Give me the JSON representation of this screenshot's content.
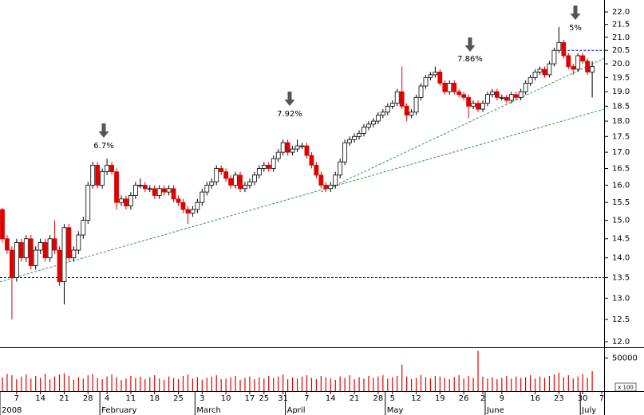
{
  "chart_data": {
    "type": "candlestick",
    "open": [
      15.3,
      14.5,
      14.2,
      13.5,
      14.4,
      14.0,
      14.5,
      13.8,
      14.2,
      14.4,
      14.0,
      14.5,
      14.2,
      13.4,
      14.8,
      14.0,
      14.2,
      14.6,
      15.0,
      16.0,
      16.6,
      16.0,
      16.4,
      16.6,
      16.4,
      15.5,
      15.6,
      15.4,
      15.7,
      16.0,
      16.0,
      15.9,
      15.9,
      15.7,
      15.9,
      15.8,
      15.9,
      15.6,
      15.5,
      15.3,
      15.2,
      15.3,
      15.5,
      15.8,
      16.0,
      16.1,
      16.5,
      16.4,
      16.2,
      16.0,
      16.3,
      15.9,
      16.0,
      16.1,
      16.3,
      16.5,
      16.6,
      16.5,
      16.8,
      17.0,
      17.3,
      17.0,
      17.1,
      17.2,
      17.2,
      16.9,
      16.6,
      16.3,
      16.0,
      15.9,
      16.0,
      16.3,
      16.7,
      17.3,
      17.4,
      17.5,
      17.6,
      17.8,
      17.9,
      18.0,
      18.2,
      18.3,
      18.5,
      18.6,
      19.0,
      18.5,
      18.2,
      18.3,
      18.8,
      19.2,
      19.5,
      19.6,
      19.7,
      19.3,
      19.0,
      19.3,
      19.0,
      18.9,
      18.8,
      18.5,
      18.6,
      18.4,
      18.6,
      18.9,
      19.0,
      18.8,
      18.8,
      18.7,
      18.9,
      18.8,
      19.0,
      19.3,
      19.5,
      19.7,
      19.8,
      19.6,
      20.0,
      20.5,
      20.8,
      20.3,
      19.9,
      19.8,
      20.3,
      20.1,
      19.7
    ],
    "high": [
      15.35,
      14.6,
      14.3,
      14.5,
      14.5,
      14.6,
      14.6,
      14.3,
      14.5,
      14.5,
      14.6,
      15.0,
      14.3,
      14.9,
      14.9,
      14.3,
      14.7,
      15.1,
      16.1,
      16.7,
      16.7,
      16.5,
      16.8,
      16.7,
      16.5,
      15.7,
      15.7,
      15.8,
      16.1,
      16.2,
      16.1,
      16.0,
      16.0,
      16.0,
      16.0,
      16.0,
      16.0,
      15.7,
      15.6,
      15.4,
      15.4,
      15.6,
      15.9,
      16.1,
      16.2,
      16.6,
      16.6,
      16.5,
      16.3,
      16.4,
      16.4,
      16.1,
      16.2,
      16.4,
      16.6,
      16.7,
      16.7,
      16.9,
      17.1,
      17.4,
      17.4,
      17.2,
      17.4,
      17.3,
      17.3,
      17.0,
      16.7,
      16.4,
      16.1,
      16.1,
      16.4,
      16.8,
      17.4,
      17.5,
      17.6,
      17.7,
      17.9,
      18.0,
      18.1,
      18.3,
      18.4,
      18.6,
      18.7,
      19.1,
      19.9,
      18.6,
      18.4,
      18.9,
      19.3,
      19.6,
      19.7,
      19.9,
      19.8,
      19.4,
      19.4,
      19.4,
      19.1,
      19.0,
      18.9,
      18.7,
      18.7,
      18.7,
      19.0,
      19.1,
      19.1,
      18.9,
      18.9,
      19.0,
      19.0,
      19.1,
      19.4,
      19.6,
      19.8,
      19.9,
      19.9,
      20.1,
      20.6,
      21.4,
      20.9,
      20.4,
      20.0,
      20.4,
      20.4,
      20.2,
      20.1
    ],
    "low": [
      14.4,
      14.1,
      12.5,
      13.4,
      13.9,
      13.9,
      13.7,
      13.7,
      14.1,
      13.9,
      13.9,
      14.1,
      13.3,
      12.85,
      13.9,
      13.9,
      14.1,
      14.5,
      14.9,
      15.9,
      15.9,
      15.9,
      16.3,
      16.3,
      15.3,
      15.4,
      15.3,
      15.3,
      15.6,
      15.9,
      15.8,
      15.8,
      15.6,
      15.6,
      15.7,
      15.7,
      15.5,
      15.4,
      15.2,
      14.9,
      15.1,
      15.2,
      15.4,
      15.7,
      15.9,
      16.0,
      16.3,
      16.1,
      15.9,
      15.9,
      15.8,
      15.8,
      15.9,
      16.0,
      16.2,
      16.4,
      16.4,
      16.4,
      16.7,
      16.9,
      16.9,
      16.9,
      17.0,
      17.1,
      16.8,
      16.5,
      16.2,
      15.9,
      15.8,
      15.8,
      15.9,
      16.2,
      16.6,
      17.2,
      17.3,
      17.4,
      17.5,
      17.7,
      17.8,
      17.9,
      18.1,
      18.2,
      18.4,
      18.5,
      18.4,
      18.0,
      18.1,
      18.2,
      18.7,
      19.1,
      19.4,
      19.5,
      19.2,
      18.9,
      18.9,
      18.9,
      18.8,
      18.7,
      18.1,
      18.4,
      18.3,
      18.3,
      18.5,
      18.8,
      18.7,
      18.7,
      18.6,
      18.6,
      18.7,
      18.7,
      18.9,
      19.2,
      19.4,
      19.6,
      19.5,
      19.5,
      19.9,
      20.4,
      20.2,
      19.8,
      19.6,
      19.7,
      20.0,
      19.6,
      18.8
    ],
    "close": [
      14.5,
      14.2,
      13.5,
      14.4,
      14.0,
      14.5,
      13.8,
      14.2,
      14.4,
      14.0,
      14.5,
      14.2,
      13.4,
      14.8,
      14.0,
      14.2,
      14.6,
      15.0,
      16.0,
      16.6,
      16.0,
      16.4,
      16.6,
      16.4,
      15.5,
      15.6,
      15.4,
      15.7,
      16.0,
      16.0,
      15.9,
      15.9,
      15.7,
      15.9,
      15.8,
      15.9,
      15.6,
      15.5,
      15.3,
      15.2,
      15.3,
      15.5,
      15.8,
      16.0,
      16.1,
      16.5,
      16.4,
      16.2,
      16.0,
      16.3,
      15.9,
      16.0,
      16.1,
      16.3,
      16.5,
      16.6,
      16.5,
      16.8,
      17.0,
      17.3,
      17.0,
      17.1,
      17.2,
      17.2,
      16.9,
      16.6,
      16.3,
      16.0,
      15.9,
      16.0,
      16.3,
      16.7,
      17.3,
      17.4,
      17.5,
      17.6,
      17.8,
      17.9,
      18.0,
      18.2,
      18.3,
      18.5,
      18.6,
      19.0,
      18.5,
      18.2,
      18.3,
      18.8,
      19.2,
      19.5,
      19.6,
      19.7,
      19.3,
      19.0,
      19.3,
      19.0,
      18.9,
      18.8,
      18.5,
      18.6,
      18.4,
      18.6,
      18.9,
      19.0,
      18.8,
      18.8,
      18.7,
      18.9,
      18.8,
      19.0,
      19.3,
      19.5,
      19.7,
      19.8,
      19.6,
      20.0,
      20.5,
      20.8,
      20.3,
      19.9,
      19.8,
      20.3,
      20.1,
      19.7,
      19.9
    ],
    "up_color": "#ffffff",
    "down_color": "#e00000",
    "log_scale": true,
    "ylim": [
      12,
      22
    ],
    "yticks": [
      {
        "value": 12,
        "label": "12.0"
      },
      {
        "value": 12.5,
        "label": "12.5"
      },
      {
        "value": 13,
        "label": "13.0"
      },
      {
        "value": 13.5,
        "label": "13.5"
      },
      {
        "value": 14,
        "label": "14.0"
      },
      {
        "value": 14.5,
        "label": "14.5"
      },
      {
        "value": 15,
        "label": "15.0"
      },
      {
        "value": 15.5,
        "label": "15.5"
      },
      {
        "value": 16,
        "label": "16.0"
      },
      {
        "value": 16.5,
        "label": "16.5"
      },
      {
        "value": 17,
        "label": "17.0"
      },
      {
        "value": 17.5,
        "label": "17.5"
      },
      {
        "value": 18,
        "label": "18.0"
      },
      {
        "value": 18.5,
        "label": "18.5"
      },
      {
        "value": 19,
        "label": "19.0"
      },
      {
        "value": 19.5,
        "label": "19.5"
      },
      {
        "value": 20,
        "label": "20.0"
      },
      {
        "value": 20.5,
        "label": "20.5"
      },
      {
        "value": 21,
        "label": "21.0"
      },
      {
        "value": 21.5,
        "label": "21.5"
      },
      {
        "value": 22,
        "label": "22.0"
      }
    ],
    "xlim": [
      -0.5,
      126.5
    ],
    "xticks": [
      {
        "value": 3,
        "label": "7"
      },
      {
        "value": 8,
        "label": "14"
      },
      {
        "value": 13,
        "label": "21"
      },
      {
        "value": 18,
        "label": "28"
      },
      {
        "value": 22,
        "label": "4"
      },
      {
        "value": 27,
        "label": "11"
      },
      {
        "value": 32,
        "label": "18"
      },
      {
        "value": 37,
        "label": "25"
      },
      {
        "value": 42,
        "label": "3"
      },
      {
        "value": 47,
        "label": "10"
      },
      {
        "value": 52,
        "label": "17"
      },
      {
        "value": 55,
        "label": "25"
      },
      {
        "value": 59,
        "label": "31"
      },
      {
        "value": 64,
        "label": "7"
      },
      {
        "value": 69,
        "label": "14"
      },
      {
        "value": 74,
        "label": "21"
      },
      {
        "value": 79,
        "label": "28"
      },
      {
        "value": 82,
        "label": "5"
      },
      {
        "value": 87,
        "label": "12"
      },
      {
        "value": 92,
        "label": "19"
      },
      {
        "value": 97,
        "label": "26"
      },
      {
        "value": 101,
        "label": "2"
      },
      {
        "value": 105,
        "label": "9"
      },
      {
        "value": 112,
        "label": "16"
      },
      {
        "value": 117,
        "label": "23"
      },
      {
        "value": 122,
        "label": "30"
      },
      {
        "value": 126,
        "label": "7"
      }
    ],
    "month_ticks": [
      {
        "value": 0,
        "label": "2008"
      },
      {
        "value": 21,
        "label": "February"
      },
      {
        "value": 41,
        "label": "March"
      },
      {
        "value": 60,
        "label": "April"
      },
      {
        "value": 81,
        "label": "May"
      },
      {
        "value": 102,
        "label": "June"
      },
      {
        "value": 122,
        "label": "July"
      }
    ],
    "hlines": [
      {
        "value": 13.5,
        "from": -0.5
      },
      {
        "value": 20.5,
        "from": 118
      }
    ],
    "hline_color": "#0000cc",
    "trendlines": [
      {
        "from": [
          -0.5,
          13.4
        ],
        "to": [
          126.5,
          18.4
        ]
      },
      {
        "from": [
          67,
          15.8
        ],
        "to": [
          126.5,
          20.2
        ]
      }
    ],
    "trendline_color": "#2e9a52",
    "annotations": [
      {
        "text": "6.7%"
      },
      {
        "text": "7.92%"
      },
      {
        "text": "7.86%"
      },
      {
        "text": "5%"
      }
    ],
    "volume": {
      "values": [
        21000,
        26000,
        24000,
        18000,
        22000,
        25000,
        19000,
        23000,
        20000,
        26000,
        18000,
        22000,
        25000,
        27000,
        23000,
        17000,
        21000,
        19000,
        24000,
        26000,
        20000,
        18000,
        22000,
        25000,
        21000,
        17000,
        19000,
        23000,
        20000,
        22000,
        18000,
        21000,
        24000,
        19000,
        17000,
        22000,
        20000,
        18000,
        23000,
        25000,
        19000,
        21000,
        17000,
        20000,
        22000,
        24000,
        18000,
        19000,
        21000,
        23000,
        17000,
        20000,
        22000,
        18000,
        21000,
        19000,
        23000,
        20000,
        22000,
        25000,
        18000,
        21000,
        19000,
        22000,
        24000,
        20000,
        18000,
        23000,
        21000,
        19000,
        17000,
        22000,
        20000,
        24000,
        18000,
        21000,
        19000,
        23000,
        20000,
        22000,
        24000,
        19000,
        21000,
        23000,
        40000,
        22000,
        18000,
        20000,
        24000,
        21000,
        19000,
        23000,
        22000,
        20000,
        18000,
        21000,
        24000,
        19000,
        23000,
        20000,
        61000,
        22000,
        19000,
        21000,
        18000,
        20000,
        23000,
        19000,
        22000,
        20000,
        21000,
        24000,
        19000,
        22000,
        20000,
        23000,
        25000,
        28000,
        21000,
        24000,
        19000,
        22000,
        26000,
        20000,
        30000
      ],
      "color": "#e00000",
      "ylim": [
        0,
        65000
      ],
      "yticks": [
        50000
      ],
      "unit_label": "x 100"
    }
  }
}
